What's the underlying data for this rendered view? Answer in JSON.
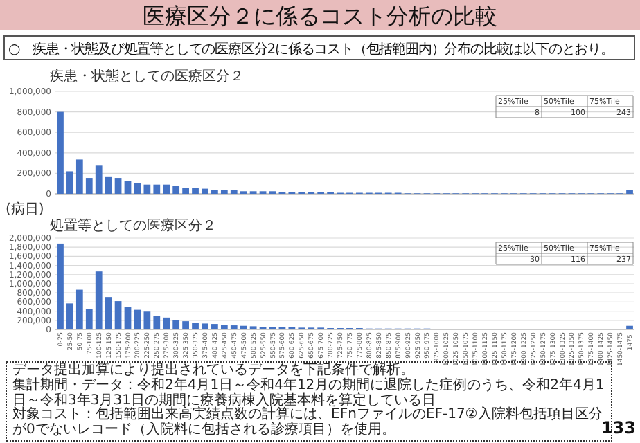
{
  "chart_data": [
    {
      "type": "other",
      "title": "医療区分２に係るコスト分析の比較",
      "subtitle": "○　疾患・状態及び処置等としての医療区分2に係るコスト（包括範囲内）分布の比較は以下のとおり。",
      "annotations": [
        "133"
      ]
    },
    {
      "type": "bar",
      "title": "疾患・状態としての医療区分２",
      "xlabel": "(病日)",
      "color": "#4472c4",
      "grid": "y",
      "tick_labels": "y",
      "categories": [
        null,
        null,
        null,
        null,
        null,
        null,
        null,
        null,
        null,
        null,
        null,
        null,
        null,
        null,
        null,
        null,
        null,
        null,
        null,
        null,
        null,
        null,
        null,
        null,
        null,
        null,
        null,
        null,
        null,
        null,
        null,
        null,
        null,
        null,
        null,
        null,
        null,
        null,
        null,
        null,
        null,
        null,
        null,
        null,
        null,
        null,
        null,
        null,
        null,
        null,
        null,
        null,
        null,
        null,
        null,
        null,
        null,
        null,
        null,
        null
      ],
      "values": [
        800000,
        220000,
        335000,
        155000,
        275000,
        170000,
        155000,
        125000,
        105000,
        90000,
        90000,
        90000,
        75000,
        60000,
        55000,
        50000,
        40000,
        40000,
        35000,
        25000,
        25000,
        25000,
        25000,
        20000,
        15000,
        15000,
        15000,
        15000,
        15000,
        10000,
        10000,
        10000,
        10000,
        10000,
        10000,
        10000,
        5000,
        5000,
        5000,
        5000,
        5000,
        5000,
        5000,
        5000,
        5000,
        5000,
        5000,
        5000,
        5000,
        5000,
        5000,
        5000,
        5000,
        5000,
        5000,
        5000,
        5000,
        5000,
        5000,
        35000
      ],
      "ylim": [
        0,
        1000000
      ],
      "yticks": [
        {
          "value": 0,
          "label": "0"
        },
        {
          "value": 200000,
          "label": "200,000"
        },
        {
          "value": 400000,
          "label": "400,000"
        },
        {
          "value": 600000,
          "label": "600,000"
        },
        {
          "value": 800000,
          "label": "800,000"
        },
        {
          "value": 1000000,
          "label": "1,000,000"
        }
      ],
      "annotations": [
        "25%Tile",
        "50%Tile",
        "75%Tile",
        "8",
        "100",
        "243"
      ]
    },
    {
      "type": "bar",
      "title": "処置等としての医療区分２",
      "color": "#4472c4",
      "grid": "y",
      "categories": [
        "0-25",
        "25-50",
        "50-75",
        "75-100",
        "100-125",
        "125-150",
        "150-175",
        "175-200",
        "200-225",
        "225-250",
        "250-275",
        "275-300",
        "300-325",
        "325-350",
        "350-375",
        "375-400",
        "400-425",
        "425-450",
        "450-475",
        "475-500",
        "500-525",
        "525-550",
        "550-575",
        "575-600",
        "600-625",
        "625-650",
        "650-675",
        "675-700",
        "700-725",
        "725-750",
        "750-775",
        "775-800",
        "800-825",
        "825-850",
        "850-875",
        "875-900",
        "900-925",
        "925-950",
        "950-975",
        "975-1000",
        "1000-1025",
        "1025-1050",
        "1050-1075",
        "1075-1100",
        "1100-1125",
        "1125-1150",
        "1150-1175",
        "1175-1200",
        "1200-1225",
        "1225-1250",
        "1250-1275",
        "1275-1300",
        "1300-1325",
        "1325-1350",
        "1350-1375",
        "1375-1400",
        "1400-1425",
        "1425-1450",
        "1450-1475",
        "1475-"
      ],
      "values": [
        1880000,
        570000,
        870000,
        450000,
        1270000,
        710000,
        620000,
        490000,
        430000,
        390000,
        300000,
        260000,
        200000,
        180000,
        150000,
        130000,
        120000,
        100000,
        90000,
        80000,
        70000,
        60000,
        60000,
        50000,
        50000,
        40000,
        40000,
        40000,
        30000,
        30000,
        30000,
        30000,
        20000,
        20000,
        20000,
        20000,
        20000,
        20000,
        20000,
        10000,
        10000,
        10000,
        10000,
        10000,
        10000,
        10000,
        10000,
        10000,
        10000,
        10000,
        10000,
        10000,
        10000,
        10000,
        10000,
        10000,
        10000,
        10000,
        10000,
        80000
      ],
      "ylim": [
        0,
        2000000
      ],
      "yticks": [
        {
          "value": 0,
          "label": "0"
        },
        {
          "value": 200000,
          "label": "200,000"
        },
        {
          "value": 400000,
          "label": "400,000"
        },
        {
          "value": 600000,
          "label": "600,000"
        },
        {
          "value": 800000,
          "label": "800,000"
        },
        {
          "value": 1000000,
          "label": "1,000,000"
        },
        {
          "value": 1200000,
          "label": "1,200,000"
        },
        {
          "value": 1400000,
          "label": "1,400,000"
        },
        {
          "value": 1600000,
          "label": "1,600,000"
        },
        {
          "value": 1800000,
          "label": "1,800,000"
        },
        {
          "value": 2000000,
          "label": "2,000,000"
        }
      ],
      "annotations": [
        "25%Tile",
        "50%Tile",
        "75%Tile",
        "30",
        "116",
        "237",
        "データ提出加算により提出されているデータを下記条件で解析。",
        "集計期間・データ：令和2年4月1日～令和4年12月の期間に退院した症例のうち、令和2年4月1日～令和3年3月31日の期間に療養病棟入院基本料を算定している日",
        "対象コスト：包括範囲出来高実績点数の計算には、EFnファイルのEF-17②入院料包括項目区分が0でないレコード（入院料に包括される診療項目）を使用。"
      ]
    }
  ]
}
